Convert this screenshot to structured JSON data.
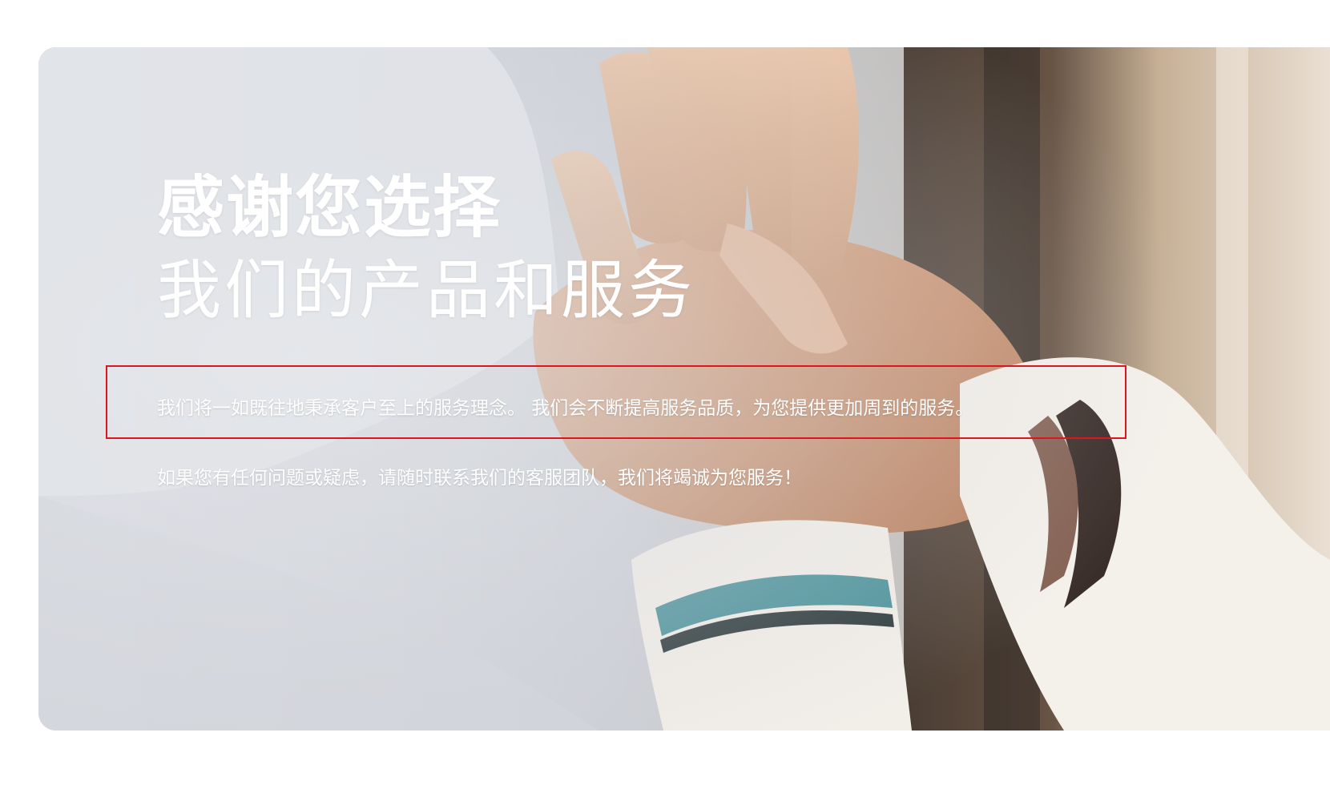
{
  "hero": {
    "title_line1": "感谢您选择",
    "title_line2": "我们的产品和服务",
    "description_line1": "我们将一如既往地秉承客户至上的服务理念。 我们会不断提高服务品质，为您提供更加周到的服务。",
    "description_line2": "如果您有任何问题或疑虑，请随时联系我们的客服团队，我们将竭诚为您服务！",
    "image_subject": "hands-together-photo"
  },
  "colors": {
    "highlight_border": "#e0141e",
    "text": "#ffffff"
  }
}
